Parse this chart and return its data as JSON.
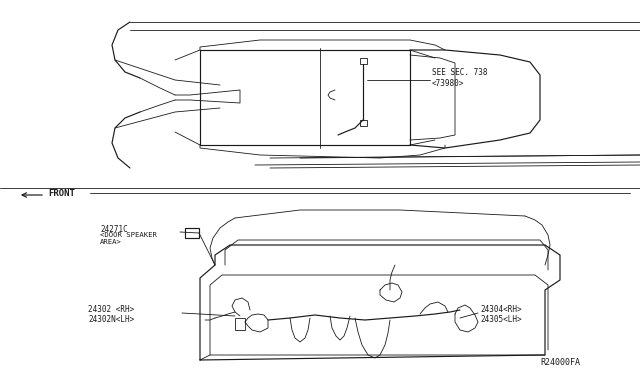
{
  "bg_color": "#ffffff",
  "line_color": "#1a1a1a",
  "fig_width": 6.4,
  "fig_height": 3.72,
  "dpi": 100,
  "annotations": {
    "see_sec": "SEE SEC. 738\n<73980>",
    "front": "FRONT",
    "part_24271C": "24271C",
    "part_24271C_sub": "<DOOR SPEAKER\nAREA>",
    "part_24302": "24302 <RH>\n24302N<LH>",
    "part_24304": "24304<RH>\n24305<LH>",
    "ref_code": "R24000FA"
  },
  "font_size_small": 5.5,
  "font_size_ref": 6.0
}
